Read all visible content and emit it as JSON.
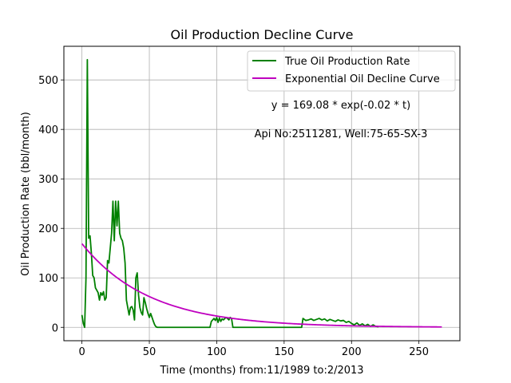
{
  "chart_data": {
    "type": "line",
    "title": "Oil Production Decline Curve",
    "xlabel": "Time (months) from:11/1989 to:2/2013",
    "ylabel": "Oil Production Rate (bbl/month)",
    "xlim": [
      -13.4,
      280.4
    ],
    "ylim": [
      -27,
      568
    ],
    "xticks": [
      0,
      50,
      100,
      150,
      200,
      250
    ],
    "yticks": [
      0,
      100,
      200,
      300,
      400,
      500
    ],
    "grid": true,
    "legend_position": "top-right",
    "annotations": [
      {
        "text": "y = 169.08 * exp(-0.02 * t)",
        "x": 192,
        "y": 450
      },
      {
        "text": "Api No:2511281, Well:75-65-SX-3",
        "x": 192,
        "y": 392
      }
    ],
    "series": [
      {
        "name": "True Oil Production Rate",
        "color": "#008000",
        "x": [
          0,
          1,
          2,
          3,
          4,
          5,
          6,
          7,
          8,
          9,
          10,
          11,
          12,
          13,
          14,
          15,
          16,
          17,
          18,
          19,
          20,
          21,
          22,
          23,
          24,
          25,
          26,
          27,
          28,
          29,
          30,
          31,
          32,
          33,
          34,
          35,
          36,
          37,
          38,
          39,
          40,
          41,
          42,
          43,
          44,
          45,
          46,
          47,
          48,
          49,
          50,
          51,
          52,
          53,
          54,
          55,
          56,
          57,
          58,
          59,
          60,
          62,
          65,
          70,
          80,
          90,
          95,
          96,
          97,
          98,
          99,
          100,
          101,
          102,
          103,
          104,
          105,
          106,
          107,
          108,
          109,
          110,
          111,
          112,
          115,
          120,
          130,
          140,
          150,
          160,
          163,
          164,
          165,
          166,
          168,
          170,
          172,
          174,
          176,
          178,
          180,
          182,
          184,
          186,
          188,
          190,
          192,
          194,
          196,
          198,
          200,
          202,
          204,
          206,
          208,
          210,
          212,
          214,
          216,
          218,
          220
        ],
        "y": [
          25,
          8,
          0,
          100,
          541,
          180,
          185,
          150,
          105,
          100,
          80,
          75,
          70,
          55,
          70,
          65,
          72,
          55,
          60,
          135,
          130,
          160,
          190,
          255,
          175,
          255,
          205,
          255,
          190,
          180,
          175,
          160,
          130,
          55,
          40,
          25,
          40,
          42,
          35,
          15,
          100,
          110,
          65,
          40,
          30,
          25,
          60,
          50,
          38,
          28,
          20,
          28,
          20,
          12,
          5,
          1,
          0,
          0,
          0,
          0,
          0,
          0,
          0,
          0,
          0,
          0,
          0,
          12,
          15,
          18,
          14,
          20,
          10,
          19,
          12,
          17,
          15,
          18,
          20,
          18,
          15,
          20,
          18,
          0,
          0,
          0,
          0,
          0,
          0,
          0,
          0,
          18,
          16,
          14,
          15,
          17,
          14,
          16,
          18,
          15,
          17,
          13,
          16,
          14,
          12,
          15,
          13,
          14,
          10,
          12,
          8,
          5,
          9,
          4,
          7,
          3,
          6,
          2,
          5,
          2,
          1
        ]
      },
      {
        "name": "Exponential Oil Decline Curve",
        "color": "#bf00bf",
        "a": 169.08,
        "b": 0.02,
        "x_start": 0,
        "x_end": 267
      }
    ]
  }
}
